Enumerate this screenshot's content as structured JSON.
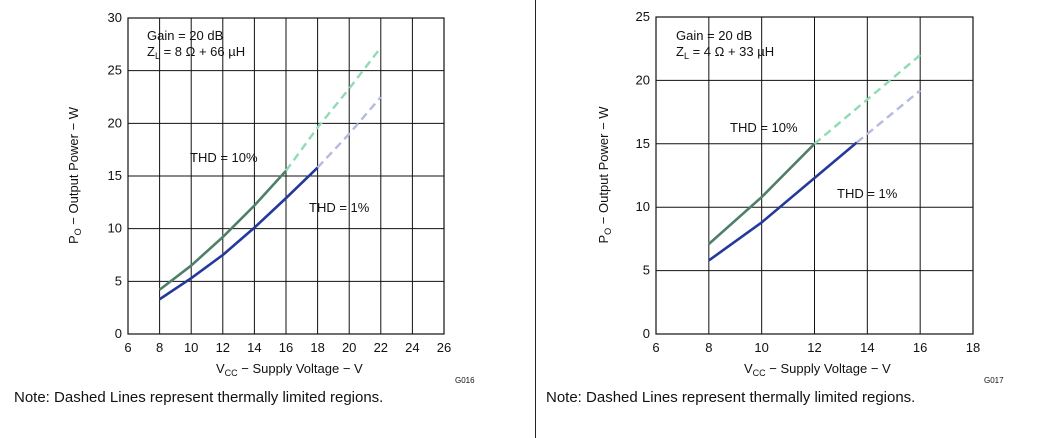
{
  "chart_data": [
    {
      "type": "line",
      "xlabel_main": "V",
      "xlabel_sub": "CC",
      "xlabel_rest": " − Supply Voltage − V",
      "ylabel_main": "P",
      "ylabel_sub": "O",
      "ylabel_rest": " − Output Power − W",
      "xlim": [
        6,
        26
      ],
      "ylim": [
        0,
        30
      ],
      "xticks": [
        6,
        8,
        10,
        12,
        14,
        16,
        18,
        20,
        22,
        24,
        26
      ],
      "yticks": [
        0,
        5,
        10,
        15,
        20,
        25,
        30
      ],
      "grid": true,
      "annotations": [
        {
          "text": "Gain = 20 dB"
        },
        {
          "main": "Z",
          "sub": "L",
          "rest": " = 8 Ω + 66 µH"
        },
        {
          "text": "THD = 10%"
        },
        {
          "text": "THD = 1%"
        }
      ],
      "figure_code": "G016",
      "series": [
        {
          "name": "THD = 10%",
          "color": "#4f7f68",
          "dashed_color": "#8fdcb4",
          "solid": {
            "x": [
              8,
              10,
              12,
              14,
              16
            ],
            "y": [
              4.2,
              6.5,
              9.2,
              12.2,
              15.5
            ]
          },
          "dashed": {
            "x": [
              16,
              18,
              20,
              22
            ],
            "y": [
              15.5,
              19.6,
              23.3,
              27.2
            ]
          }
        },
        {
          "name": "THD = 1%",
          "color": "#24399a",
          "dashed_color": "#b6b9e2",
          "solid": {
            "x": [
              8,
              10,
              12,
              14,
              16,
              18
            ],
            "y": [
              3.3,
              5.3,
              7.5,
              10.1,
              12.9,
              15.8
            ]
          },
          "dashed": {
            "x": [
              18,
              20,
              22
            ],
            "y": [
              15.8,
              19.0,
              22.5
            ]
          }
        }
      ],
      "note": "Note: Dashed Lines represent thermally limited regions."
    },
    {
      "type": "line",
      "xlabel_main": "V",
      "xlabel_sub": "CC",
      "xlabel_rest": " − Supply Voltage − V",
      "ylabel_main": "P",
      "ylabel_sub": "O",
      "ylabel_rest": " − Output Power − W",
      "xlim": [
        6,
        18
      ],
      "ylim": [
        0,
        25
      ],
      "xticks": [
        6,
        8,
        10,
        12,
        14,
        16,
        18
      ],
      "yticks": [
        0,
        5,
        10,
        15,
        20,
        25
      ],
      "grid": true,
      "annotations": [
        {
          "text": "Gain = 20 dB"
        },
        {
          "main": "Z",
          "sub": "L",
          "rest": " = 4 Ω + 33 µH"
        },
        {
          "text": "THD = 10%"
        },
        {
          "text": "THD = 1%"
        }
      ],
      "figure_code": "G017",
      "series": [
        {
          "name": "THD = 10%",
          "color": "#4f7f68",
          "dashed_color": "#8fdcb4",
          "solid": {
            "x": [
              8,
              10,
              12
            ],
            "y": [
              7.1,
              10.8,
              15.0
            ]
          },
          "dashed": {
            "x": [
              12,
              14,
              16
            ],
            "y": [
              15.0,
              18.5,
              22.0
            ]
          }
        },
        {
          "name": "THD = 1%",
          "color": "#24399a",
          "dashed_color": "#b6b9e2",
          "solid": {
            "x": [
              8,
              10,
              12,
              13.6
            ],
            "y": [
              5.8,
              8.8,
              12.3,
              15.1
            ]
          },
          "dashed": {
            "x": [
              13.6,
              16
            ],
            "y": [
              15.1,
              19.2
            ]
          }
        }
      ],
      "note": "Note: Dashed Lines represent thermally limited regions."
    }
  ]
}
